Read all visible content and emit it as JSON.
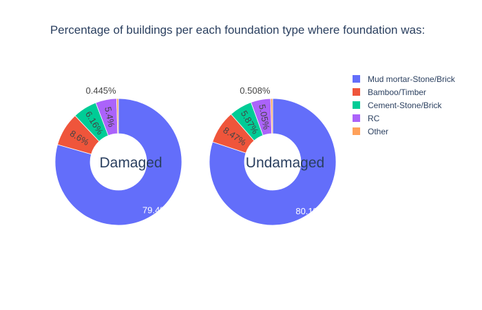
{
  "chart_data": {
    "type": "pie",
    "hole": true,
    "title": "Percentage of buildings per each foundation type where foundation was:",
    "categories": [
      "Mud mortar-Stone/Brick",
      "Bamboo/Timber",
      "Cement-Stone/Brick",
      "RC",
      "Other"
    ],
    "colors": [
      "#636efa",
      "#ef553b",
      "#00cc96",
      "#ab63fa",
      "#ffa15a"
    ],
    "legend_position": "top-right",
    "charts": [
      {
        "label": "Damaged",
        "values": [
          79.4,
          8.6,
          6.16,
          5.4,
          0.445
        ],
        "value_labels": [
          "79.4%",
          "8.6%",
          "6.16%",
          "5.4%",
          "0.445%"
        ]
      },
      {
        "label": "Undamaged",
        "values": [
          80.1,
          8.47,
          5.87,
          5.05,
          0.508
        ],
        "value_labels": [
          "80.1%",
          "8.47%",
          "5.87%",
          "5.05%",
          "0.508%"
        ]
      }
    ]
  }
}
